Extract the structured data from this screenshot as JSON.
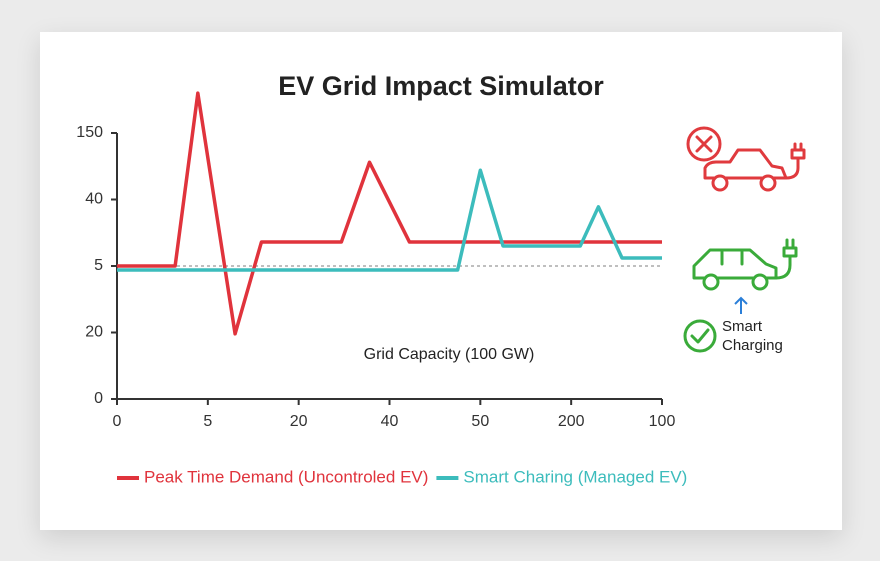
{
  "chart_data": {
    "type": "line",
    "title": "EV Grid Impact Simulator",
    "xlim": [
      0,
      6
    ],
    "xticks": [
      0,
      {
        "value": 1,
        "label": "5"
      },
      {
        "value": 2,
        "label": "20"
      },
      {
        "value": 3,
        "label": "40"
      },
      {
        "value": 4,
        "label": "50"
      },
      {
        "value": 5,
        "label": "200"
      },
      {
        "value": 6,
        "label": "100"
      }
    ],
    "ylim": [
      0,
      4.8
    ],
    "yticks": [
      0,
      {
        "value": 1,
        "label": "20"
      },
      {
        "value": 2,
        "label": "5"
      },
      {
        "value": 3,
        "label": "40"
      },
      {
        "value": 4,
        "label": "150"
      }
    ],
    "capacity": {
      "label": "Grid Capacity (100 GW)",
      "value": 2,
      "color": "#aaaaaa"
    },
    "legend": "bottom",
    "series": [
      {
        "name": "Peak Time Demand (Uncontroled EV)",
        "color": "#e0333c",
        "x": [
          0,
          0.64,
          0.89,
          1.3,
          1.59,
          2.47,
          2.78,
          3.22,
          6
        ],
        "values": [
          2,
          2,
          4.6,
          0.98,
          2.36,
          2.36,
          3.56,
          2.36,
          2.36
        ]
      },
      {
        "name": "Smart Charing (Managed EV)",
        "color": "#3cbcbc",
        "x": [
          0,
          3.75,
          4.0,
          4.25,
          5.1,
          5.3,
          5.56,
          6
        ],
        "values": [
          1.94,
          1.94,
          3.44,
          2.3,
          2.3,
          2.89,
          2.12,
          2.12
        ]
      }
    ]
  },
  "side_panel": {
    "smart_label": [
      "Smart",
      "Charging"
    ]
  }
}
